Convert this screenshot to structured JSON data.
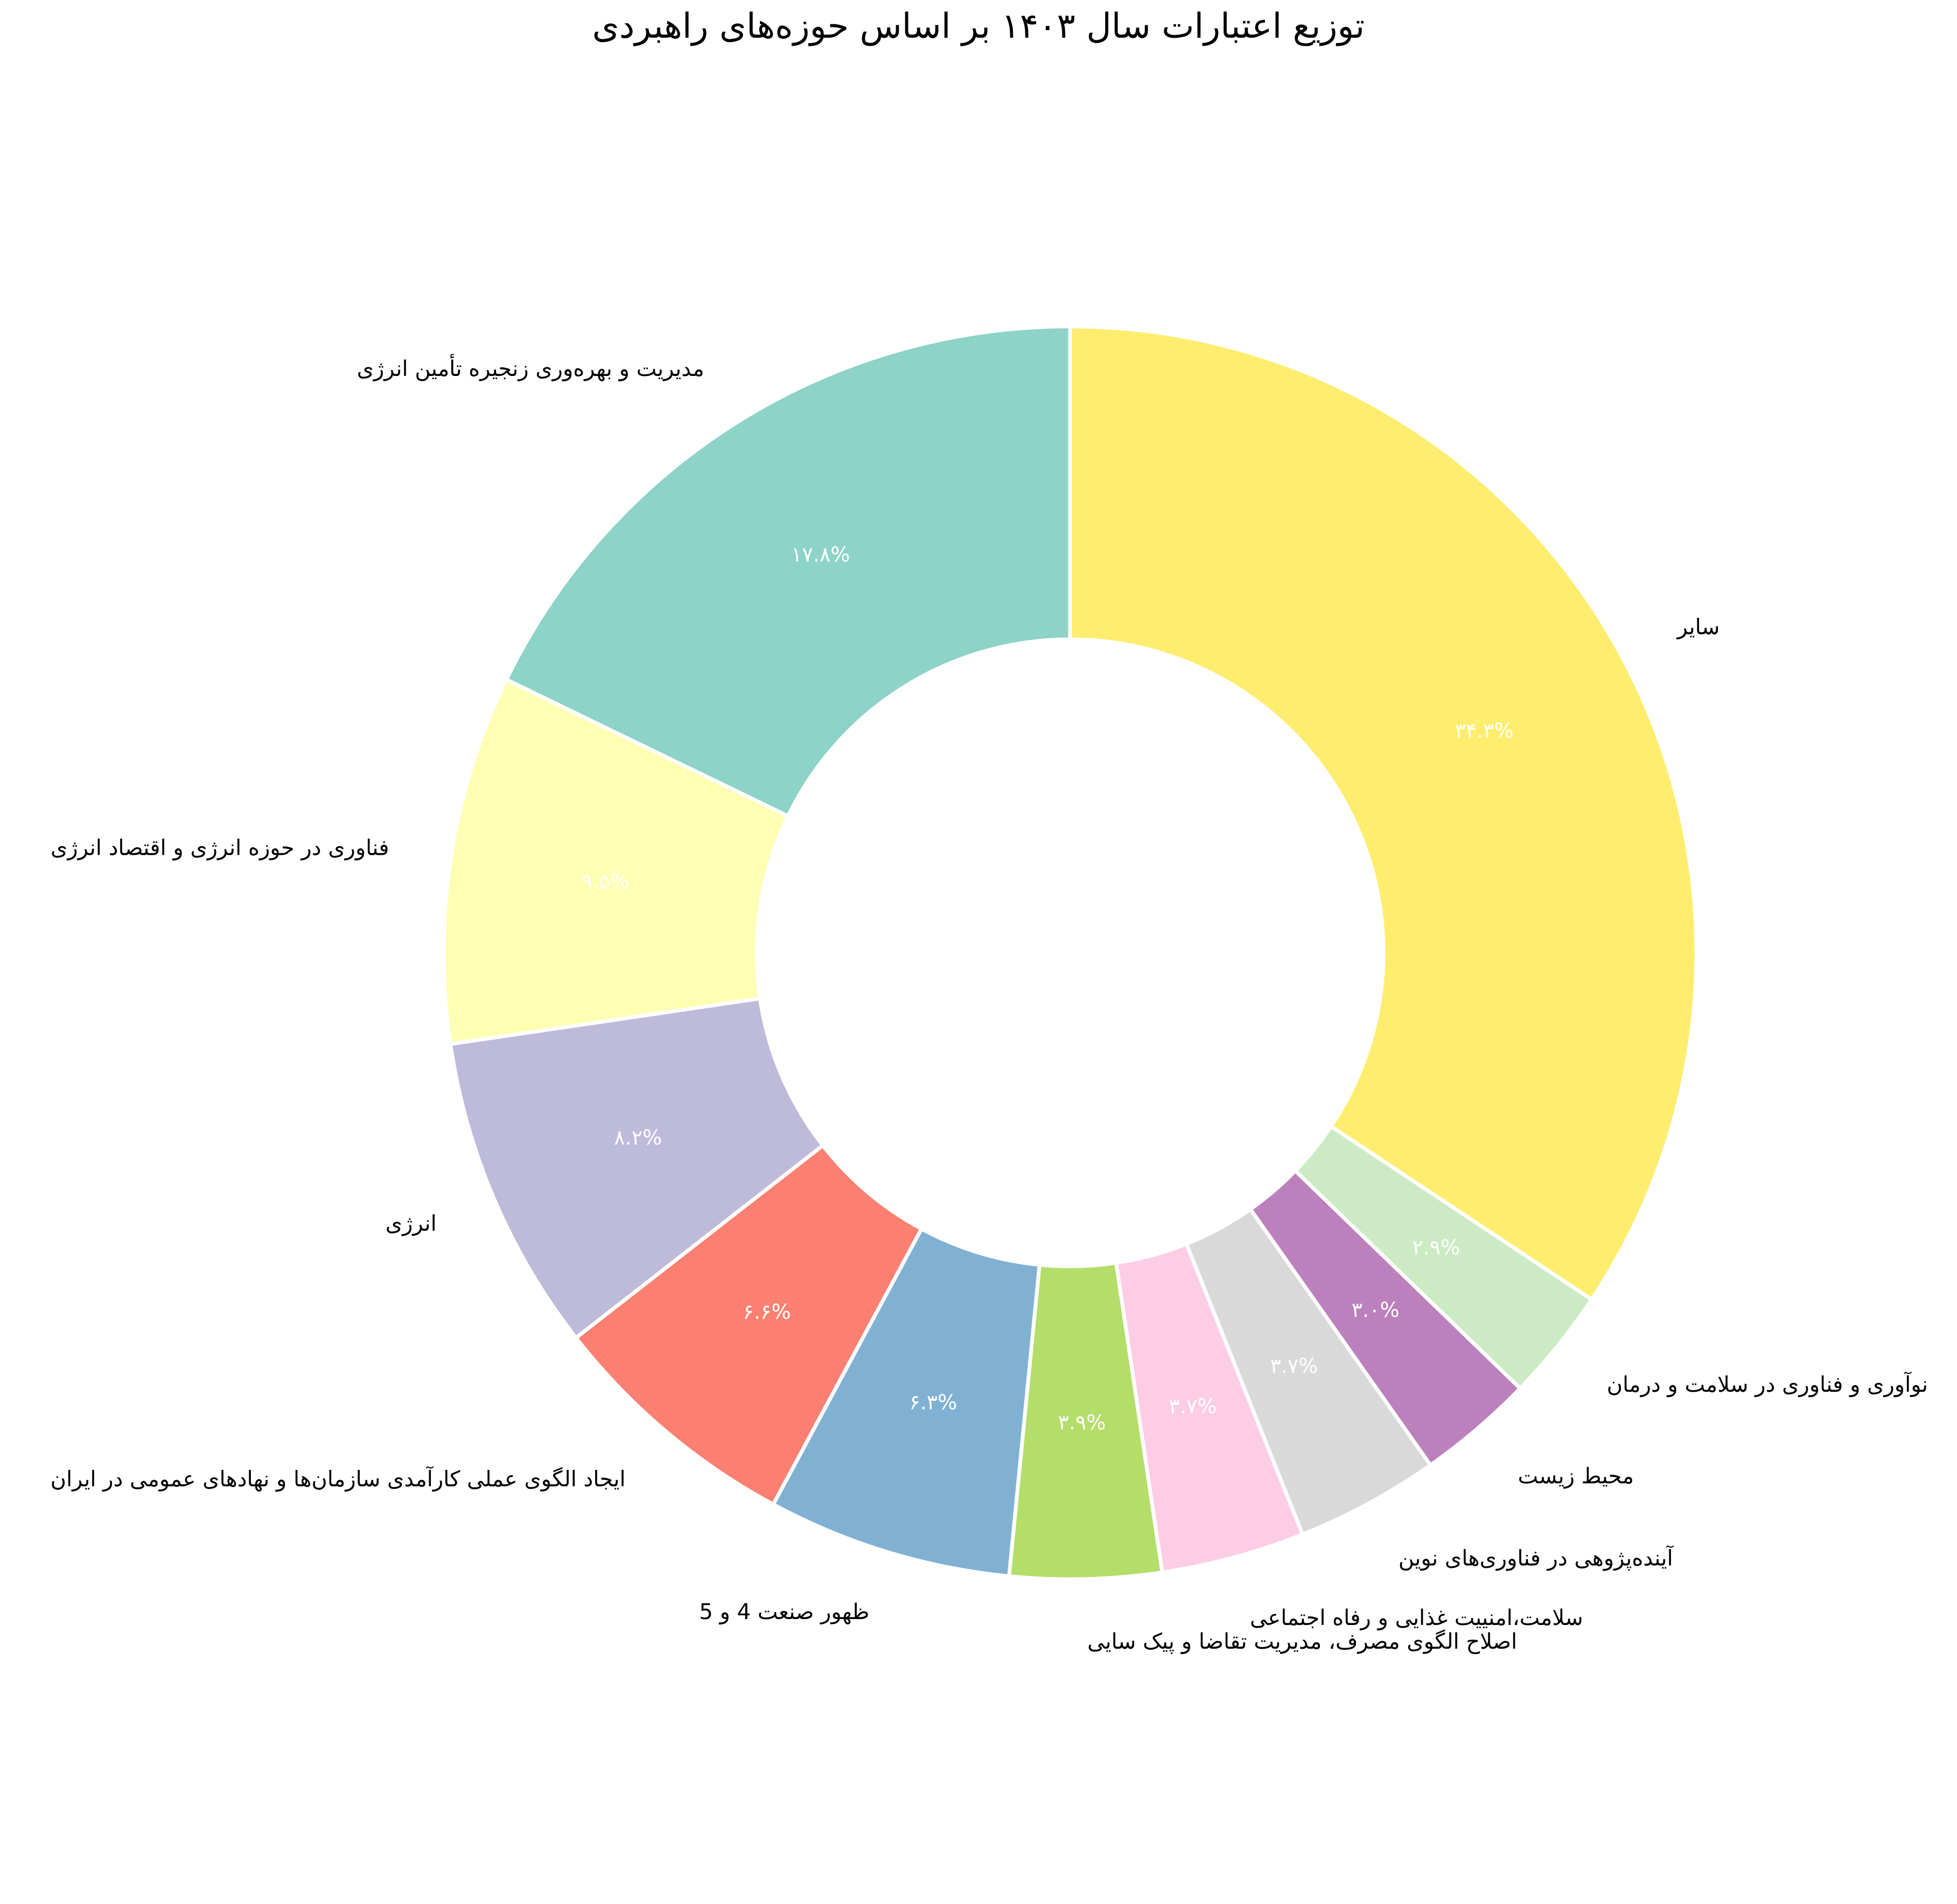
{
  "chart_data": {
    "type": "pie",
    "donut": true,
    "title": "توزیع اعتبارات سال ۱۴۰۳ بر اساس حوزه‌های راهبردی",
    "start_angle_deg": 90,
    "direction": "counterclockwise",
    "slices": [
      {
        "label": "مدیریت و بهره‌وری زنجیره تأمین انرژی",
        "value": 17.8,
        "pct_label": "۱۷.۸%",
        "color": "#8dd3c7"
      },
      {
        "label": "فناوری در حوزه انرژی و اقتصاد انرژی",
        "value": 9.5,
        "pct_label": "۹.۵%",
        "color": "#ffffb3"
      },
      {
        "label": "انرژی",
        "value": 8.2,
        "pct_label": "۸.۲%",
        "color": "#bebada"
      },
      {
        "label": "ایجاد الگوی عملی کارآمدی سازمان‌ها و نهادهای عمومی در ایران",
        "value": 6.6,
        "pct_label": "۶.۶%",
        "color": "#fb8072"
      },
      {
        "label": "ظهور صنعت 4 و 5",
        "value": 6.3,
        "pct_label": "۶.۳%",
        "color": "#80b1d3"
      },
      {
        "label": "اصلاح الگوی مصرف، مدیریت تقاضا و پیک سایی",
        "value": 3.9,
        "pct_label": "۳.۹%",
        "color": "#b3de69"
      },
      {
        "label": "سلامت،امنییت غذایی و رفاه اجتماعی",
        "value": 3.7,
        "pct_label": "۳.۷%",
        "color": "#fccde5"
      },
      {
        "label": "آینده‌پژوهی در فناوری‌های نوین",
        "value": 3.7,
        "pct_label": "۳.۷%",
        "color": "#d9d9d9"
      },
      {
        "label": "محیط زیست",
        "value": 3.0,
        "pct_label": "۳.۰%",
        "color": "#bc80bd"
      },
      {
        "label": "نوآوری و فناوری در سلامت و درمان",
        "value": 2.9,
        "pct_label": "۲.۹%",
        "color": "#ccebc5"
      },
      {
        "label": "سایر",
        "value": 34.3,
        "pct_label": "۳۴.۳%",
        "color": "#ffed6f"
      }
    ],
    "edge_color": "#ffffff",
    "pct_label_color": "#ffffff"
  }
}
